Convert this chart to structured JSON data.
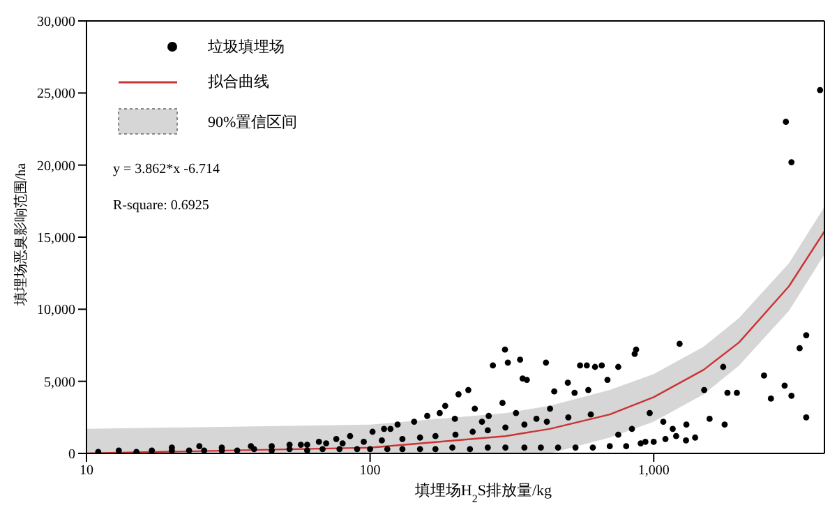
{
  "chart_data": {
    "type": "scatter",
    "xlabel": "填埋场H$_{2}$S排放量/kg",
    "ylabel": "填埋场恶臭影响范围/ha",
    "log": "x",
    "grid": false,
    "legend": "top left",
    "xlim": [
      10,
      4000
    ],
    "xticks": [
      10,
      100,
      {
        "value": 1000,
        "label": "1,000"
      }
    ],
    "ylim": [
      0,
      30000
    ],
    "yticks": [
      0,
      {
        "value": 5000,
        "label": "5,000"
      },
      {
        "value": 10000,
        "label": "10,000"
      },
      {
        "value": 15000,
        "label": "15,000"
      },
      {
        "value": 20000,
        "label": "20,000"
      },
      {
        "value": 25000,
        "label": "25,000"
      },
      {
        "value": 30000,
        "label": "30,000"
      }
    ],
    "annotations": [
      "y = 3.862*x -6.714",
      "R-square: 0.6925"
    ],
    "series": [
      {
        "name": "垃圾填埋场",
        "color": "#000000",
        "x": [
          299,
          271,
          306,
          338,
          417,
          345,
          357,
          222,
          205,
          184,
          550,
          581,
          621,
          656,
          750,
          857,
          867,
          1234,
          446,
          498,
          526,
          588,
          687,
          1758,
          1507,
          1820,
          1965,
          2449,
          2895,
          3060,
          2590,
          3450,
          3270,
          3450,
          1574,
          1779,
          968,
          1304,
          1081,
          1167,
          176,
          102,
          112,
          118,
          125,
          76,
          85,
          57,
          66,
          3860,
          2925,
          3060,
          234,
          262,
          293,
          327,
          386,
          248,
          431,
          159,
          143,
          199,
          838,
          750,
          935,
          11,
          13,
          15,
          17,
          20,
          23,
          26,
          30,
          34,
          39,
          45,
          52,
          60,
          68,
          78,
          90,
          100,
          115,
          130,
          150,
          170,
          195,
          225,
          260,
          300,
          350,
          400,
          460,
          530,
          610,
          700,
          800,
          900,
          1000,
          1100,
          1200,
          1300,
          1400,
          20,
          25,
          30,
          38,
          45,
          52,
          60,
          70,
          80,
          95,
          110,
          130,
          150,
          170,
          200,
          230,
          260,
          300,
          350,
          420,
          500,
          600
        ],
        "values": [
          7200,
          6100,
          6300,
          6500,
          6300,
          5200,
          5100,
          4400,
          4100,
          3300,
          6100,
          6100,
          6000,
          6100,
          6000,
          6900,
          7200,
          7600,
          4300,
          4900,
          4200,
          4400,
          5100,
          6000,
          4400,
          4200,
          4200,
          5400,
          4700,
          4000,
          3800,
          8200,
          7300,
          2500,
          2400,
          2000,
          2800,
          2000,
          2200,
          1700,
          2800,
          1500,
          1700,
          1700,
          2000,
          1000,
          1200,
          600,
          800,
          25200,
          23000,
          20200,
          3100,
          2600,
          3500,
          2800,
          2400,
          2200,
          3100,
          2600,
          2200,
          2400,
          1700,
          1300,
          800,
          100,
          200,
          100,
          200,
          200,
          200,
          200,
          200,
          200,
          300,
          200,
          300,
          200,
          300,
          300,
          300,
          300,
          300,
          300,
          300,
          300,
          400,
          300,
          400,
          400,
          400,
          400,
          400,
          400,
          400,
          500,
          500,
          700,
          800,
          1000,
          1200,
          900,
          1100,
          400,
          500,
          400,
          500,
          500,
          600,
          600,
          700,
          700,
          800,
          900,
          1000,
          1100,
          1200,
          1300,
          1500,
          1600,
          1800,
          2000,
          2200,
          2500,
          2700
        ]
      },
      {
        "name": "拟合曲线",
        "type": "line",
        "color": "#cc3333",
        "x": [
          10,
          100,
          300,
          430,
          700,
          1000,
          1500,
          2000,
          3000,
          4000
        ],
        "values": [
          0,
          400,
          1200,
          1700,
          2700,
          3900,
          5800,
          7700,
          11600,
          15400
        ],
        "lower": [
          0,
          0,
          0,
          0,
          1100,
          2200,
          4100,
          6100,
          9900,
          13800
        ],
        "upper": [
          1700,
          2000,
          2800,
          3300,
          4400,
          5500,
          7400,
          9400,
          13200,
          17100
        ]
      },
      {
        "name": "90%置信区间",
        "type": "area",
        "color": "#d6d6d6"
      }
    ]
  }
}
